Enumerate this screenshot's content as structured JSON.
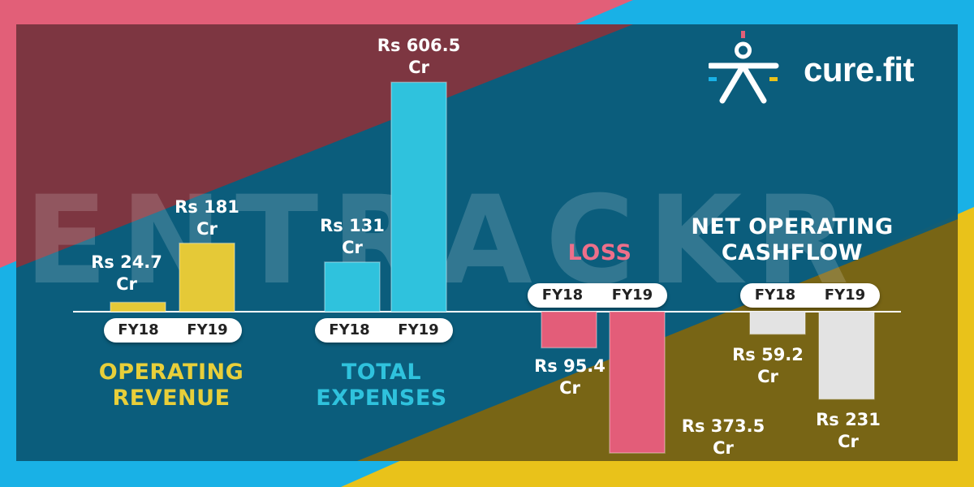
{
  "brand": {
    "name": "cure.fit",
    "watermark": "ENTRACKR"
  },
  "colors": {
    "operating_revenue": "#e5c937",
    "total_expenses": "#2fc2dd",
    "loss": "#e35d79",
    "net_operating_cashflow": "#e3e3e3",
    "panel": "#0b5a78",
    "pink": "#e25f78",
    "sky": "#19b1e6",
    "gold": "#e9c21a"
  },
  "chart_data": {
    "type": "bar",
    "categories": [
      "FY18",
      "FY19"
    ],
    "units": "Rs Cr",
    "groups": [
      {
        "id": "operating_revenue",
        "title": [
          "OPERATING",
          "REVENUE"
        ],
        "values": [
          24.7,
          181
        ],
        "labels": [
          [
            "Rs 24.7",
            "Cr"
          ],
          [
            "Rs 181",
            "Cr"
          ]
        ],
        "fy": [
          "FY18",
          "FY19"
        ]
      },
      {
        "id": "total_expenses",
        "title": [
          "TOTAL",
          "EXPENSES"
        ],
        "values": [
          131,
          606.5
        ],
        "labels": [
          [
            "Rs 131",
            "Cr"
          ],
          [
            "Rs 606.5",
            "Cr"
          ]
        ],
        "fy": [
          "FY18",
          "FY19"
        ]
      },
      {
        "id": "loss",
        "title": [
          "LOSS"
        ],
        "values": [
          -95.4,
          -373.5
        ],
        "labels": [
          [
            "Rs 95.4",
            "Cr"
          ],
          [
            "Rs 373.5",
            "Cr"
          ]
        ],
        "fy": [
          "FY18",
          "FY19"
        ]
      },
      {
        "id": "net_operating_cashflow",
        "title": [
          "NET OPERATING",
          "CASHFLOW"
        ],
        "values": [
          -59.2,
          -231
        ],
        "labels": [
          [
            "Rs 59.2",
            "Cr"
          ],
          [
            "Rs 231",
            "Cr"
          ]
        ],
        "fy": [
          "FY18",
          "FY19"
        ]
      }
    ]
  }
}
